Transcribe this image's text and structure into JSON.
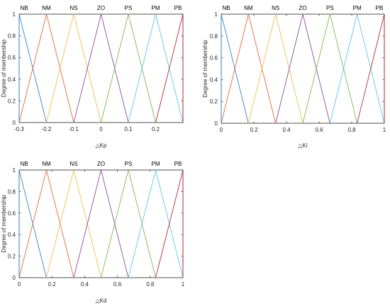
{
  "ylabel": "Degree of membership",
  "colors": [
    "#3a82c4",
    "#e8673a",
    "#ecc04a",
    "#8d4a9e",
    "#7fba4e",
    "#5fc6ea",
    "#b5263a"
  ],
  "chart_data": [
    {
      "type": "line",
      "title": "",
      "xlabel": "△Kp",
      "ylabel": "Degree of membership",
      "xlim": [
        -0.3,
        0.3
      ],
      "ylim": [
        0,
        1
      ],
      "xticks": [
        "-0.3",
        "-0.2",
        "-0.1",
        "0",
        "0.1",
        "0.2"
      ],
      "xtick_values": [
        -0.3,
        -0.2,
        -0.1,
        0,
        0.1,
        0.2
      ],
      "yticks": [
        "0",
        "0.2",
        "0.4",
        "0.6",
        "0.8",
        "1"
      ],
      "ytick_values": [
        0,
        0.2,
        0.4,
        0.6,
        0.8,
        1
      ],
      "grid": false,
      "series": [
        {
          "name": "NB",
          "x": [
            -0.3,
            -0.3,
            -0.2
          ],
          "y": [
            0,
            1,
            0
          ]
        },
        {
          "name": "NM",
          "x": [
            -0.3,
            -0.2,
            -0.1
          ],
          "y": [
            0,
            1,
            0
          ]
        },
        {
          "name": "NS",
          "x": [
            -0.2,
            -0.1,
            0
          ],
          "y": [
            0,
            1,
            0
          ]
        },
        {
          "name": "ZO",
          "x": [
            -0.1,
            0,
            0.1
          ],
          "y": [
            0,
            1,
            0
          ]
        },
        {
          "name": "PS",
          "x": [
            0,
            0.1,
            0.2
          ],
          "y": [
            0,
            1,
            0
          ]
        },
        {
          "name": "PM",
          "x": [
            0.1,
            0.2,
            0.3
          ],
          "y": [
            0,
            1,
            0
          ]
        },
        {
          "name": "PB",
          "x": [
            0.2,
            0.3,
            0.3
          ],
          "y": [
            0,
            1,
            0
          ]
        }
      ]
    },
    {
      "type": "line",
      "title": "",
      "xlabel": "△Ki",
      "ylabel": "Degree of membership",
      "xlim": [
        0,
        1
      ],
      "ylim": [
        0,
        1
      ],
      "xticks": [
        "0",
        "0.2",
        "0.4",
        "0.6",
        "0.8",
        "1"
      ],
      "xtick_values": [
        0,
        0.2,
        0.4,
        0.6,
        0.8,
        1
      ],
      "yticks": [
        "0",
        "0.2",
        "0.4",
        "0.6",
        "0.8",
        "1"
      ],
      "ytick_values": [
        0,
        0.2,
        0.4,
        0.6,
        0.8,
        1
      ],
      "grid": false,
      "series": [
        {
          "name": "NB",
          "x": [
            0,
            0,
            0.1667
          ],
          "y": [
            0,
            1,
            0
          ]
        },
        {
          "name": "NM",
          "x": [
            0,
            0.1667,
            0.3333
          ],
          "y": [
            0,
            1,
            0
          ]
        },
        {
          "name": "NS",
          "x": [
            0.1667,
            0.3333,
            0.5
          ],
          "y": [
            0,
            1,
            0
          ]
        },
        {
          "name": "ZO",
          "x": [
            0.3333,
            0.5,
            0.6667
          ],
          "y": [
            0,
            1,
            0
          ]
        },
        {
          "name": "PS",
          "x": [
            0.5,
            0.6667,
            0.8333
          ],
          "y": [
            0,
            1,
            0
          ]
        },
        {
          "name": "PM",
          "x": [
            0.6667,
            0.8333,
            1
          ],
          "y": [
            0,
            1,
            0
          ]
        },
        {
          "name": "PB",
          "x": [
            0.8333,
            1,
            1
          ],
          "y": [
            0,
            1,
            0
          ]
        }
      ]
    },
    {
      "type": "line",
      "title": "",
      "xlabel": "△Kd",
      "ylabel": "Degree of membership",
      "xlim": [
        0,
        1
      ],
      "ylim": [
        0,
        1
      ],
      "xticks": [
        "0",
        "0.2",
        "0.4",
        "0.6",
        "0.8",
        "1"
      ],
      "xtick_values": [
        0,
        0.2,
        0.4,
        0.6,
        0.8,
        1
      ],
      "yticks": [
        "0",
        "0.2",
        "0.4",
        "0.6",
        "0.8",
        "1"
      ],
      "ytick_values": [
        0,
        0.2,
        0.4,
        0.6,
        0.8,
        1
      ],
      "grid": false,
      "series": [
        {
          "name": "NB",
          "x": [
            0,
            0,
            0.1667
          ],
          "y": [
            0,
            1,
            0
          ]
        },
        {
          "name": "NM",
          "x": [
            0,
            0.1667,
            0.3333
          ],
          "y": [
            0,
            1,
            0
          ]
        },
        {
          "name": "NS",
          "x": [
            0.1667,
            0.3333,
            0.5
          ],
          "y": [
            0,
            1,
            0
          ]
        },
        {
          "name": "ZO",
          "x": [
            0.3333,
            0.5,
            0.6667
          ],
          "y": [
            0,
            1,
            0
          ]
        },
        {
          "name": "PS",
          "x": [
            0.5,
            0.6667,
            0.8333
          ],
          "y": [
            0,
            1,
            0
          ]
        },
        {
          "name": "PM",
          "x": [
            0.6667,
            0.8333,
            1
          ],
          "y": [
            0,
            1,
            0
          ]
        },
        {
          "name": "PB",
          "x": [
            0.8333,
            1,
            1
          ],
          "y": [
            0,
            1,
            0
          ]
        }
      ]
    }
  ]
}
